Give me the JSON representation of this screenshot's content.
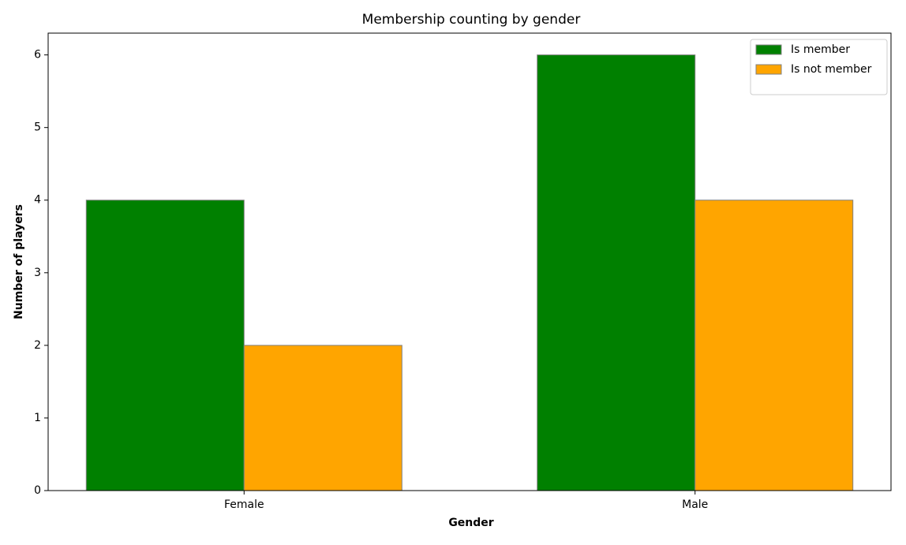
{
  "chart_data": {
    "type": "bar",
    "title": "Membership counting by gender",
    "x_label": "Gender",
    "y_label": "Number of players",
    "categories": [
      "Female",
      "Male"
    ],
    "series": [
      {
        "name": "Is member",
        "color": "#008000",
        "values": [
          4,
          6
        ]
      },
      {
        "name": "Is not member",
        "color": "#ffa500",
        "values": [
          2,
          4
        ]
      }
    ],
    "ylim": [
      0,
      6.3
    ],
    "yticks": [
      0,
      1,
      2,
      3,
      4,
      5,
      6
    ],
    "grid": false,
    "legend": "upper right"
  }
}
